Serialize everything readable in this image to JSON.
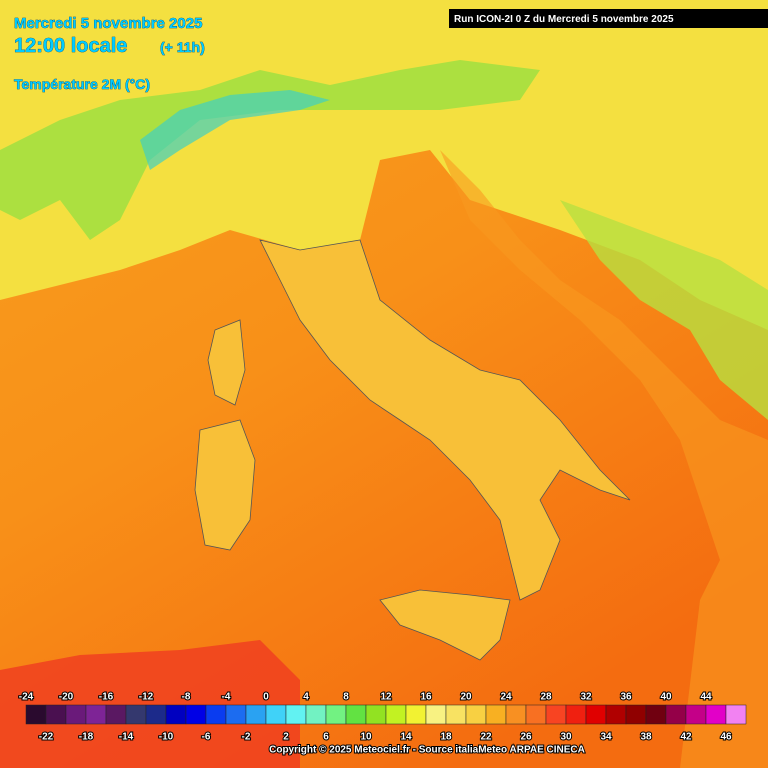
{
  "header": {
    "date": "Mercredi 5 novembre 2025",
    "time": "12:00 locale",
    "offset": "(+ 11h)",
    "variable": "Température 2M (°C)"
  },
  "run_label": "Run ICON-2I 0 Z du Mercredi 5 novembre 2025",
  "colorbar": {
    "swatches": [
      {
        "value": -24,
        "color": "#2a0a2e"
      },
      {
        "value": -22,
        "color": "#4a1050"
      },
      {
        "value": -20,
        "color": "#6a1a7a"
      },
      {
        "value": -18,
        "color": "#7e2496"
      },
      {
        "value": -16,
        "color": "#5a1862"
      },
      {
        "value": -14,
        "color": "#34386e"
      },
      {
        "value": -12,
        "color": "#1c2a8a"
      },
      {
        "value": -10,
        "color": "#0000c0"
      },
      {
        "value": -8,
        "color": "#0000e6"
      },
      {
        "value": -6,
        "color": "#0a3cf0"
      },
      {
        "value": -4,
        "color": "#1c6cf0"
      },
      {
        "value": -2,
        "color": "#2aa2f2"
      },
      {
        "value": 0,
        "color": "#40d2f8"
      },
      {
        "value": 2,
        "color": "#62f2f2"
      },
      {
        "value": 4,
        "color": "#72f2c2"
      },
      {
        "value": 6,
        "color": "#72f282"
      },
      {
        "value": 8,
        "color": "#62e242"
      },
      {
        "value": 10,
        "color": "#92e222"
      },
      {
        "value": 12,
        "color": "#c2f222"
      },
      {
        "value": 14,
        "color": "#f2f232"
      },
      {
        "value": 16,
        "color": "#f8f282"
      },
      {
        "value": 18,
        "color": "#f8e262"
      },
      {
        "value": 20,
        "color": "#f8d042"
      },
      {
        "value": 22,
        "color": "#f8b022"
      },
      {
        "value": 24,
        "color": "#f89022"
      },
      {
        "value": 26,
        "color": "#f87022"
      },
      {
        "value": 28,
        "color": "#f84422"
      },
      {
        "value": 30,
        "color": "#f02010"
      },
      {
        "value": 32,
        "color": "#e00000"
      },
      {
        "value": 34,
        "color": "#b00000"
      },
      {
        "value": 36,
        "color": "#900000"
      },
      {
        "value": 38,
        "color": "#700010"
      },
      {
        "value": 40,
        "color": "#940048"
      },
      {
        "value": 42,
        "color": "#c40088"
      },
      {
        "value": 44,
        "color": "#e200c8"
      },
      {
        "value": 46,
        "color": "#f282f2"
      }
    ]
  },
  "copyright": "Copyright © 2025 Meteociel.fr - Source italiaMeteo ARPAE CINECA"
}
